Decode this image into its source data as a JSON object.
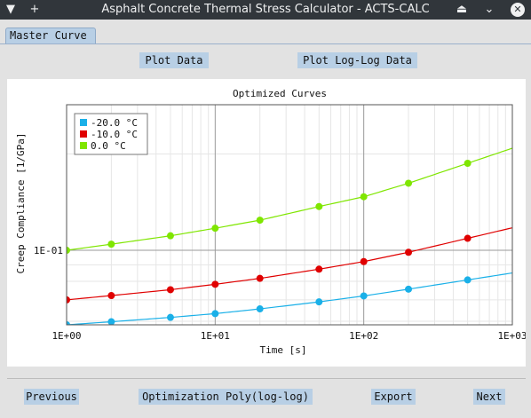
{
  "window": {
    "title": "Asphalt Concrete Thermal Stress Calculator - ACTS-CALC",
    "menu_icon": "▼",
    "new_icon": "+",
    "maximize_icon": "⏏",
    "minimize_icon": "⌄",
    "close_icon": "✕"
  },
  "tabs": [
    {
      "label": "Master Curve",
      "active": true
    }
  ],
  "toolbar": {
    "plot_data_label": "Plot Data",
    "plot_loglog_label": "Plot Log-Log Data"
  },
  "footer": {
    "previous_label": "Previous",
    "optimization_label": "Optimization Poly(log-log)",
    "export_label": "Export",
    "next_label": "Next"
  },
  "chart_data": {
    "type": "line",
    "title": "Optimized Curves",
    "xlabel": "Time [s]",
    "ylabel": "Creep Compliance [1/GPa]",
    "x_scale": "log",
    "y_scale": "log",
    "xlim": [
      1,
      1000
    ],
    "ylim": [
      0.0585,
      0.285
    ],
    "x_ticks": [
      {
        "value": 1,
        "label": "1E+00"
      },
      {
        "value": 10,
        "label": "1E+01"
      },
      {
        "value": 100,
        "label": "1E+02"
      },
      {
        "value": 1000,
        "label": "1E+03"
      }
    ],
    "y_ticks": [
      {
        "value": 0.1,
        "label": "1E-01"
      }
    ],
    "grid": true,
    "legend_position": "top-left",
    "series": [
      {
        "name": "-20.0 °C",
        "color": "#1ab0e8",
        "x": [
          1,
          2,
          5,
          10,
          20,
          50,
          100,
          200,
          500
        ],
        "y": [
          0.0585,
          0.0598,
          0.0617,
          0.0634,
          0.0656,
          0.069,
          0.072,
          0.0756,
          0.0808
        ]
      },
      {
        "name": "-10.0 °C",
        "color": "#e00000",
        "x": [
          1,
          2,
          5,
          10,
          20,
          50,
          100,
          200,
          500
        ],
        "y": [
          0.07,
          0.0722,
          0.0753,
          0.0783,
          0.0817,
          0.0873,
          0.0922,
          0.0986,
          0.109
        ]
      },
      {
        "name": "0.0 °C",
        "color": "#7fe600",
        "x": [
          1,
          2,
          5,
          10,
          20,
          50,
          100,
          200,
          500
        ],
        "y": [
          0.1,
          0.1045,
          0.111,
          0.1172,
          0.1242,
          0.137,
          0.147,
          0.162,
          0.187
        ]
      }
    ]
  }
}
